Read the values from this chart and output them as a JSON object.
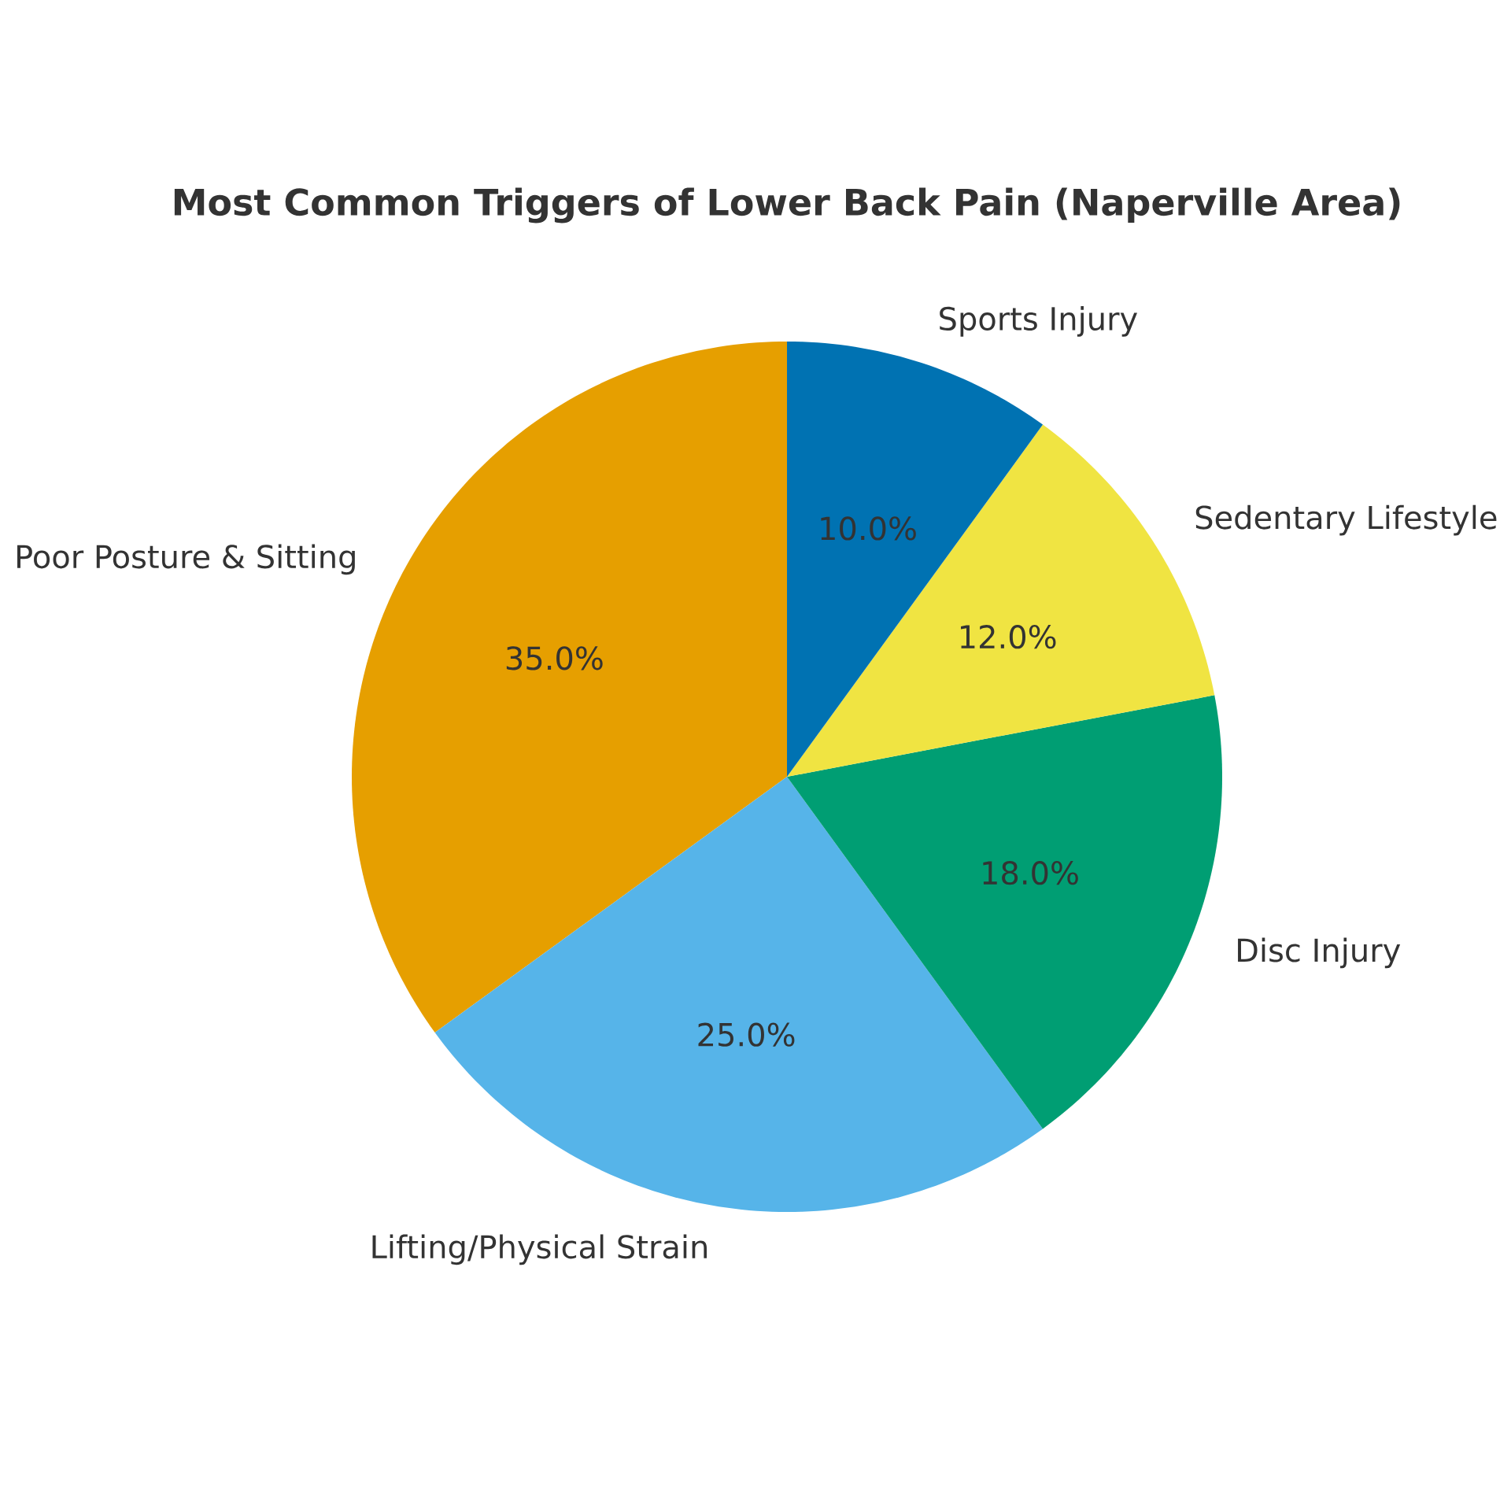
{
  "chart_data": {
    "type": "pie",
    "title": "Most Common Triggers of Lower Back Pain (Naperville Area)",
    "categories": [
      "Poor Posture & Sitting",
      "Lifting/Physical Strain",
      "Disc Injury",
      "Sedentary Lifestyle",
      "Sports Injury"
    ],
    "values": [
      35,
      25,
      18,
      12,
      10
    ],
    "colors": [
      "#e69f00",
      "#56b4e9",
      "#009e73",
      "#f0e442",
      "#0072b2"
    ],
    "value_labels": [
      "35.0%",
      "25.0%",
      "18.0%",
      "12.0%",
      "10.0%"
    ]
  }
}
